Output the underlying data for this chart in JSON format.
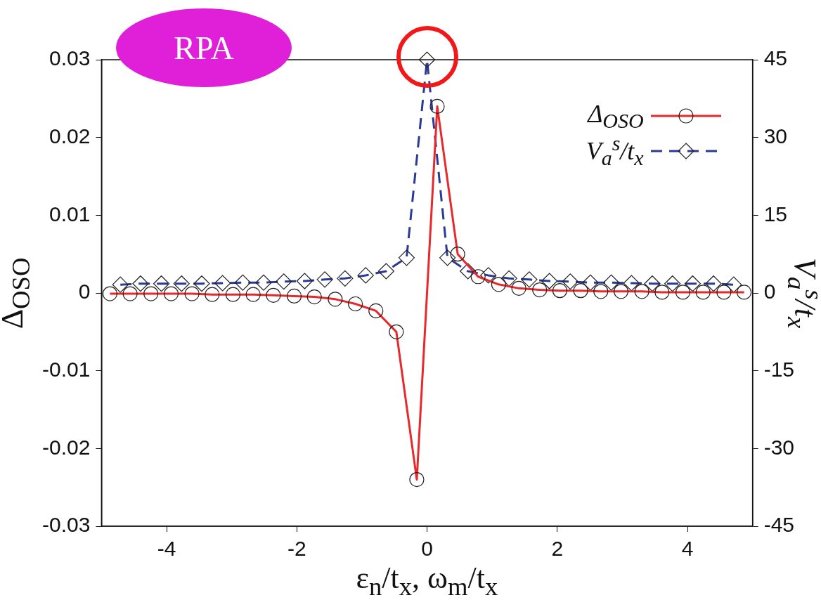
{
  "chart_data": {
    "type": "line",
    "xlabel": "ε$_{n}$/t$_{x}$, ω$_{m}$/t$_{x}$",
    "ylabel": "Δ$_{OSO}$",
    "y2label": "V$_{a}$$^{s}$/t$_{x}$",
    "annotations": [
      "RPA"
    ],
    "xlim": [
      -5,
      5
    ],
    "xticks": [
      -4,
      -2,
      0,
      2,
      4
    ],
    "ylim": [
      -0.03,
      0.03
    ],
    "yticks": [
      -0.03,
      -0.02,
      -0.01,
      0,
      0.01,
      0.02,
      0.03
    ],
    "y2lim": [
      -45,
      45
    ],
    "y2ticks": [
      -45,
      -30,
      -15,
      0,
      15,
      30,
      45
    ],
    "grid": false,
    "legend": "top right",
    "series": [
      {
        "name": "Δ$_{OSO}$",
        "color": "#e8282b",
        "marker": "circle",
        "line_style": "solid",
        "x": [
          -4.87,
          -4.56,
          -4.24,
          -3.93,
          -3.61,
          -3.3,
          -2.98,
          -2.67,
          -2.36,
          -2.04,
          -1.73,
          -1.41,
          -1.1,
          -0.785,
          -0.471,
          -0.157,
          0.157,
          0.471,
          0.785,
          1.1,
          1.41,
          1.73,
          2.04,
          2.36,
          2.67,
          2.98,
          3.3,
          3.61,
          3.93,
          4.24,
          4.56,
          4.87
        ],
        "values": [
          -0.0001,
          -0.0001,
          -0.0001,
          -0.0001,
          -0.0001,
          -0.0002,
          -0.0002,
          -0.0002,
          -0.0003,
          -0.0004,
          -0.0005,
          -0.0008,
          -0.0014,
          -0.0023,
          -0.005,
          -0.024,
          0.024,
          0.005,
          0.0021,
          0.0011,
          0.0006,
          0.0004,
          0.0003,
          0.0003,
          0.0002,
          0.0002,
          0.0002,
          0.0001,
          0.0001,
          0.0001,
          0.0001,
          0.0001
        ]
      },
      {
        "name": "V$_{a}$$^{s}$/t$_{x}$",
        "color": "#2b3a96",
        "marker": "diamond",
        "line_style": "dashed",
        "axis": "y2",
        "x": [
          -4.71,
          -4.4,
          -4.08,
          -3.77,
          -3.46,
          -3.14,
          -2.83,
          -2.51,
          -2.2,
          -1.88,
          -1.57,
          -1.26,
          -0.942,
          -0.628,
          -0.314,
          0,
          0.314,
          0.628,
          0.942,
          1.26,
          1.57,
          1.88,
          2.2,
          2.51,
          2.83,
          3.14,
          3.46,
          3.77,
          4.08,
          4.4,
          4.71
        ],
        "values": [
          1.6,
          1.8,
          1.8,
          1.8,
          1.8,
          1.9,
          2.0,
          2.0,
          2.2,
          2.3,
          2.6,
          2.8,
          3.4,
          4.2,
          6.8,
          45,
          6.8,
          4.2,
          3.4,
          2.8,
          2.6,
          2.3,
          2.2,
          2.0,
          2.0,
          1.9,
          1.8,
          1.8,
          1.8,
          1.8,
          1.6
        ]
      }
    ]
  }
}
